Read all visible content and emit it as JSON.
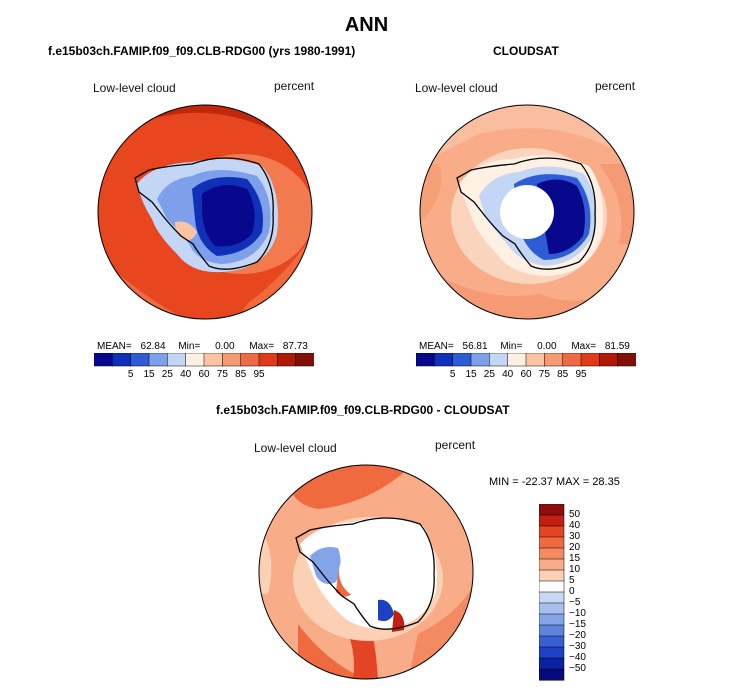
{
  "title": "ANN",
  "panels": [
    {
      "title": "f.e15b03ch.FAMIP.f09_f09.CLB-RDG00 (yrs 1980-1991)",
      "variable": "Low-level cloud",
      "units": "percent",
      "stats": {
        "mean_label": "MEAN=",
        "mean": "62.84",
        "min_label": "Min=",
        "min": "0.00",
        "max_label": "Max=",
        "max": "87.73"
      }
    },
    {
      "title": "CLOUDSAT",
      "variable": "Low-level cloud",
      "units": "percent",
      "stats": {
        "mean_label": "MEAN=",
        "mean": "56.81",
        "min_label": "Min=",
        "min": "0.00",
        "max_label": "Max=",
        "max": "81.59"
      }
    },
    {
      "title": "f.e15b03ch.FAMIP.f09_f09.CLB-RDG00 - CLOUDSAT",
      "variable": "Low-level cloud",
      "units": "percent",
      "stats_text": "MIN = -22.37  MAX =  28.35"
    }
  ],
  "chart_data": [
    {
      "type": "heatmap",
      "projection": "south-polar-stereographic",
      "title": "f.e15b03ch.FAMIP.f09_f09.CLB-RDG00 (yrs 1980-1991)",
      "field": "Low-level cloud",
      "units": "percent",
      "mean": 62.84,
      "min": 0.0,
      "max": 87.73,
      "colorbar_levels": [
        5,
        15,
        25,
        40,
        60,
        75,
        85,
        95
      ],
      "colorbar_orientation": "horizontal"
    },
    {
      "type": "heatmap",
      "projection": "south-polar-stereographic",
      "title": "CLOUDSAT",
      "field": "Low-level cloud",
      "units": "percent",
      "mean": 56.81,
      "min": 0.0,
      "max": 81.59,
      "colorbar_levels": [
        5,
        15,
        25,
        40,
        60,
        75,
        85,
        95
      ],
      "colorbar_orientation": "horizontal",
      "missing_pole": true
    },
    {
      "type": "heatmap",
      "projection": "south-polar-stereographic",
      "title": "f.e15b03ch.FAMIP.f09_f09.CLB-RDG00 - CLOUDSAT",
      "field": "Low-level cloud",
      "units": "percent",
      "min": -22.37,
      "max": 28.35,
      "colorbar_levels": [
        50,
        40,
        30,
        20,
        15,
        10,
        5,
        0,
        -5,
        -10,
        -15,
        -20,
        -30,
        -40,
        -50
      ],
      "colorbar_orientation": "vertical",
      "missing_pole": true
    }
  ],
  "colors": {
    "abs_scale": [
      "#08088c",
      "#1030b8",
      "#2e5bd6",
      "#7ea0ea",
      "#c4d6f6",
      "#fff0e4",
      "#fbc4a4",
      "#f59a74",
      "#ee6a44",
      "#e03a18",
      "#b01808",
      "#801008"
    ],
    "diff_scale": [
      "#900c0c",
      "#c41e10",
      "#e24424",
      "#f06a40",
      "#f48a62",
      "#f8ac88",
      "#fbd0b4",
      "#ffffff",
      "#c8d8f4",
      "#a8c0f0",
      "#84a4ea",
      "#5e84e0",
      "#3860d4",
      "#1e40c4",
      "#0c20a4",
      "#060a7c"
    ]
  }
}
